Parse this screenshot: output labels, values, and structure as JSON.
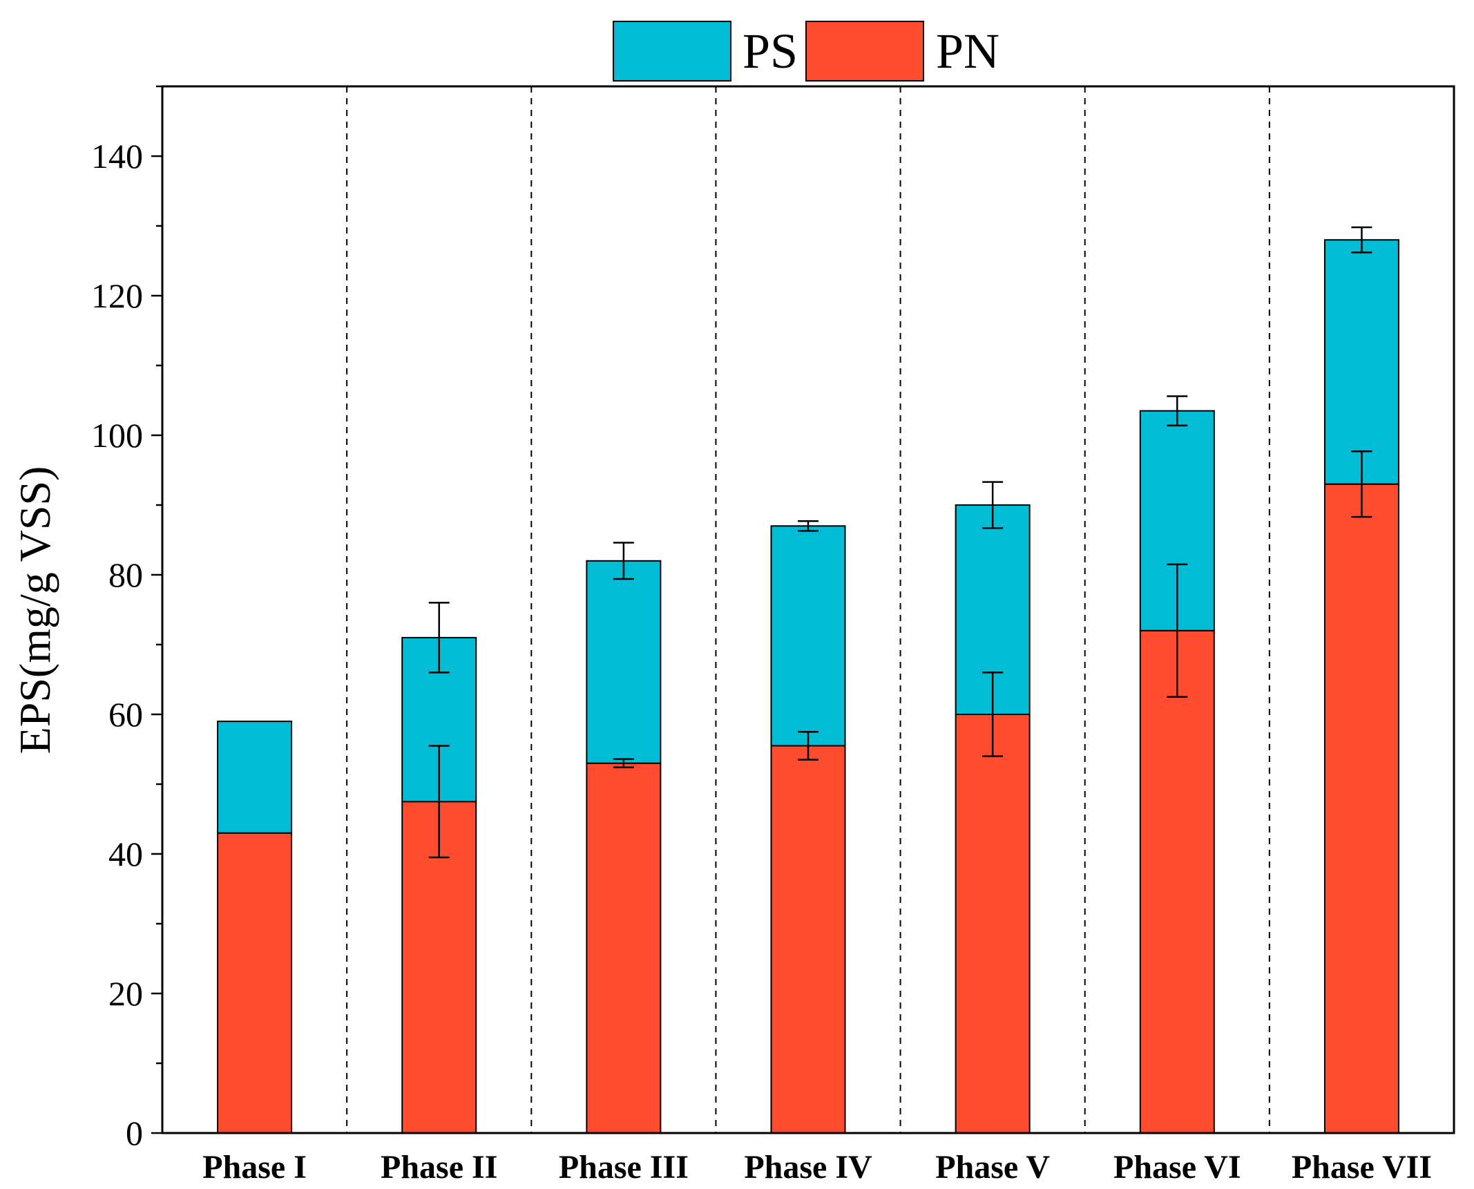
{
  "chart_data": {
    "type": "bar",
    "stacked": true,
    "title": "",
    "xlabel": "",
    "ylabel": "EPS(mg/g VSS)",
    "ylim": [
      0,
      150
    ],
    "yticks": [
      0,
      20,
      40,
      60,
      80,
      100,
      120,
      140
    ],
    "categories": [
      "Phase I",
      "Phase II",
      "Phase III",
      "Phase IV",
      "Phase V",
      "Phase VI",
      "Phase VII"
    ],
    "series": [
      {
        "name": "PN",
        "color": "#FF4B2E",
        "values": [
          43,
          47.5,
          53,
          55.5,
          60,
          72,
          93
        ],
        "errors": [
          0,
          8,
          0.6,
          2,
          6,
          9.5,
          4.7
        ]
      },
      {
        "name": "PS",
        "color": "#00BCD4",
        "values": [
          16,
          23.5,
          29,
          31.5,
          30,
          31.5,
          35
        ],
        "errors": [
          0,
          5,
          2.6,
          0.7,
          3.3,
          2.1,
          1.8
        ]
      }
    ],
    "legend": {
      "position": "top-center",
      "order": [
        "PS",
        "PN"
      ]
    },
    "phase_separators": "dashed"
  }
}
